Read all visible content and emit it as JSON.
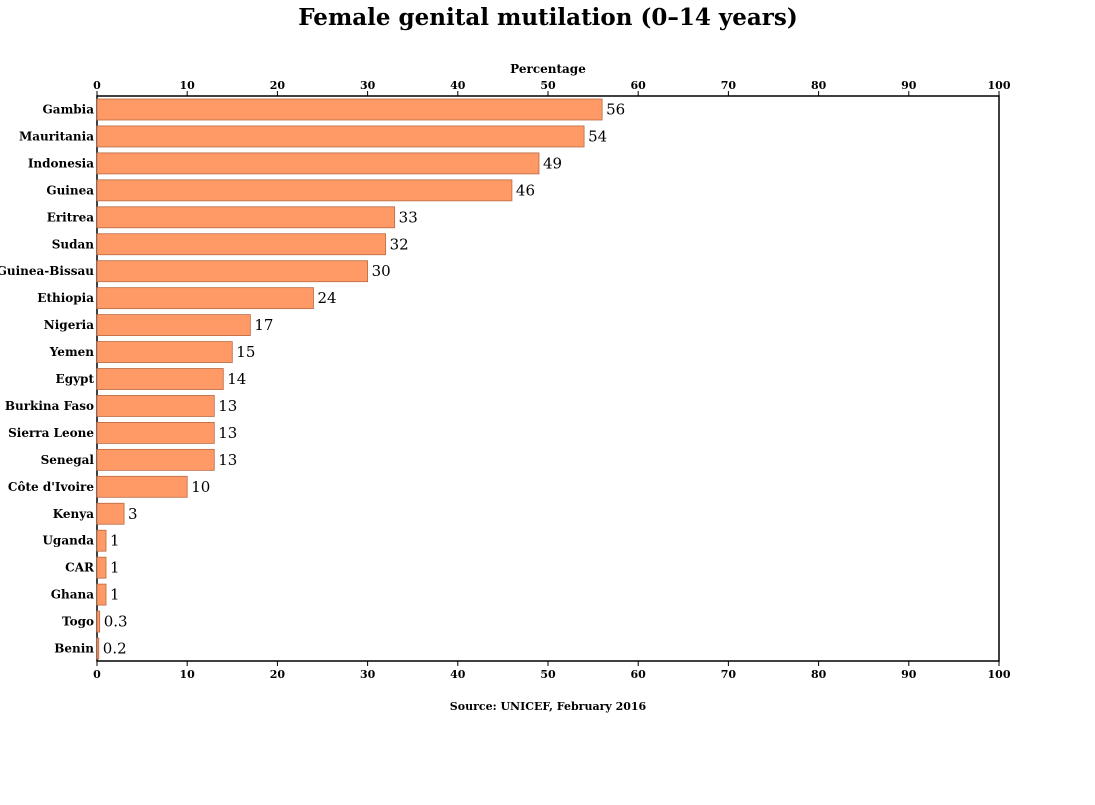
{
  "chart_data": {
    "type": "bar",
    "orientation": "horizontal",
    "title": "Female genital mutilation (0–14 years)",
    "xlabel": "Percentage",
    "ylabel": "",
    "xlim": [
      0,
      100
    ],
    "x_ticks": [
      0,
      10,
      20,
      30,
      40,
      50,
      60,
      70,
      80,
      90,
      100
    ],
    "tick_axes": [
      "top",
      "bottom"
    ],
    "grid": false,
    "legend": "none",
    "source": "Source: UNICEF, February 2016",
    "bar_color": "#ff9966",
    "bar_stroke": "#b86a44",
    "categories": [
      "Gambia",
      "Mauritania",
      "Indonesia",
      "Guinea",
      "Eritrea",
      "Sudan",
      "Guinea-Bissau",
      "Ethiopia",
      "Nigeria",
      "Yemen",
      "Egypt",
      "Burkina Faso",
      "Sierra Leone",
      "Senegal",
      "Côte d'Ivoire",
      "Kenya",
      "Uganda",
      "CAR",
      "Ghana",
      "Togo",
      "Benin"
    ],
    "values": [
      56,
      54,
      49,
      46,
      33,
      32,
      30,
      24,
      17,
      15,
      14,
      13,
      13,
      13,
      10,
      3,
      1,
      1,
      1,
      0.3,
      0.2
    ],
    "value_labels": [
      "56",
      "54",
      "49",
      "46",
      "33",
      "32",
      "30",
      "24",
      "17",
      "15",
      "14",
      "13",
      "13",
      "13",
      "10",
      "3",
      "1",
      "1",
      "1",
      "0.3",
      "0.2"
    ]
  }
}
